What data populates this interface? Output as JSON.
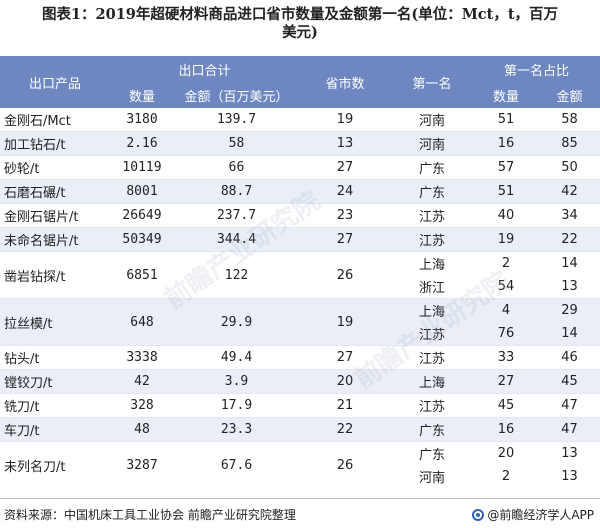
{
  "title_line1": "图表1：2019年超硬材料商品进口省市数量及金额第一名(单位：Mct，t，百万",
  "title_line2": "美元)",
  "headers": {
    "product": "出口产品",
    "export_total": "出口合计",
    "quantity": "数量",
    "amount": "金额（百万美元）",
    "province_count": "省市数",
    "first": "第一名",
    "first_share": "第一名占比",
    "share_quantity": "数量",
    "share_amount": "金额"
  },
  "rows": [
    {
      "product": "金刚石/Mct",
      "quantity": "3180",
      "amount": "139.7",
      "count": "19",
      "entries": [
        {
          "province": "河南",
          "q": "51",
          "a": "58"
        }
      ]
    },
    {
      "product": "加工钻石/t",
      "quantity": "2.16",
      "amount": "58",
      "count": "13",
      "entries": [
        {
          "province": "河南",
          "q": "16",
          "a": "85"
        }
      ]
    },
    {
      "product": "砂轮/t",
      "quantity": "10119",
      "amount": "66",
      "count": "27",
      "entries": [
        {
          "province": "广东",
          "q": "57",
          "a": "50"
        }
      ]
    },
    {
      "product": "石磨石碾/t",
      "quantity": "8001",
      "amount": "88.7",
      "count": "24",
      "entries": [
        {
          "province": "广东",
          "q": "51",
          "a": "42"
        }
      ]
    },
    {
      "product": "金刚石锯片/t",
      "quantity": "26649",
      "amount": "237.7",
      "count": "23",
      "entries": [
        {
          "province": "江苏",
          "q": "40",
          "a": "34"
        }
      ]
    },
    {
      "product": "未命名锯片/t",
      "quantity": "50349",
      "amount": "344.4",
      "count": "27",
      "entries": [
        {
          "province": "江苏",
          "q": "19",
          "a": "22"
        }
      ]
    },
    {
      "product": "凿岩钻探/t",
      "quantity": "6851",
      "amount": "122",
      "count": "26",
      "entries": [
        {
          "province": "上海",
          "q": "2",
          "a": "14"
        },
        {
          "province": "浙江",
          "q": "54",
          "a": "13"
        }
      ]
    },
    {
      "product": "拉丝模/t",
      "quantity": "648",
      "amount": "29.9",
      "count": "19",
      "entries": [
        {
          "province": "上海",
          "q": "4",
          "a": "29"
        },
        {
          "province": "江苏",
          "q": "76",
          "a": "14"
        }
      ]
    },
    {
      "product": "钻头/t",
      "quantity": "3338",
      "amount": "49.4",
      "count": "27",
      "entries": [
        {
          "province": "江苏",
          "q": "33",
          "a": "46"
        }
      ]
    },
    {
      "product": "镗铰刀/t",
      "quantity": "42",
      "amount": "3.9",
      "count": "20",
      "entries": [
        {
          "province": "上海",
          "q": "27",
          "a": "45"
        }
      ]
    },
    {
      "product": "铣刀/t",
      "quantity": "328",
      "amount": "17.9",
      "count": "21",
      "entries": [
        {
          "province": "江苏",
          "q": "45",
          "a": "47"
        }
      ]
    },
    {
      "product": "车刀/t",
      "quantity": "48",
      "amount": "23.3",
      "count": "22",
      "entries": [
        {
          "province": "广东",
          "q": "16",
          "a": "47"
        }
      ]
    },
    {
      "product": "未列名刀/t",
      "quantity": "3287",
      "amount": "67.6",
      "count": "26",
      "entries": [
        {
          "province": "广东",
          "q": "20",
          "a": "13"
        },
        {
          "province": "河南",
          "q": "2",
          "a": "13"
        }
      ]
    }
  ],
  "footer": {
    "source": "资料来源：中国机床工具工业协会 前瞻产业研究院整理",
    "brand": "@前瞻经济学人APP"
  },
  "watermark": "前瞻产业研究院",
  "colors": {
    "header_bg": "#6e87c0",
    "stripe": "#e9eef7",
    "brand": "#2b63b5"
  }
}
